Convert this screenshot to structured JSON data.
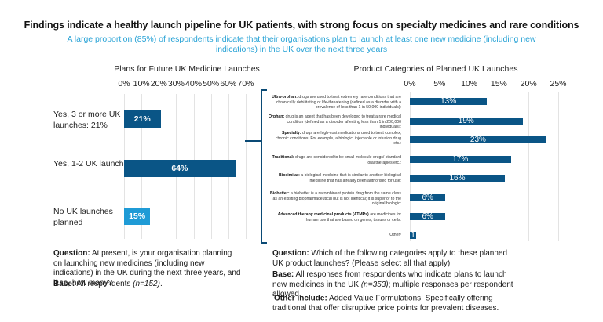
{
  "header": {
    "title": "Findings indicate a healthy launch pipeline for UK patients, with strong focus on specialty medicines and rare conditions",
    "subtitle": "A large proportion (85%) of respondents indicate that their organisations plan to launch at least one new medicine (including new indications) in the UK over the next three years"
  },
  "colors": {
    "primary_bar": "#0a5586",
    "secondary_bar": "#1f9bd6",
    "subtitle": "#29a3d6",
    "brace": "#0a4a75"
  },
  "chart_data": [
    {
      "type": "bar",
      "orientation": "horizontal",
      "title": "Plans for Future UK Medicine Launches",
      "categories": [
        "Yes, 3 or more UK launches: 21%",
        "Yes, 1-2 UK launches:",
        "No UK launches planned"
      ],
      "values": [
        21,
        64,
        15
      ],
      "data_labels": [
        "21%",
        "64%",
        "15%"
      ],
      "xlim": [
        0,
        70
      ],
      "x_ticks": [
        "0%",
        "10%",
        "20%",
        "30%",
        "40%",
        "50%",
        "60%",
        "70%"
      ],
      "grid": true,
      "xlabel": "",
      "ylabel": ""
    },
    {
      "type": "bar",
      "orientation": "horizontal",
      "title": "Product Categories of Planned UK Launches",
      "categories": [
        {
          "term": "Ultra-orphan:",
          "desc": "drugs are used to treat extremely rare conditions that are chronically debilitating or life-threatening (defined as a disorder with a prevalence of less than 1 in 50,000 individuals):"
        },
        {
          "term": "Orphan:",
          "desc": "drug is an agent that has been developed to treat a rare medical condition (defined as a disorder affecting less than 1 in 200,000 individuals):"
        },
        {
          "term": "Specialty:",
          "desc": "drugs are high-cost medications used to treat complex, chronic conditions. For example, a biologic, injectable or infusion drug etc.:"
        },
        {
          "term": "Traditional:",
          "desc": "drugs are considered to be small molecule drugs/ standard oral therapies etc.:"
        },
        {
          "term": "Biosimilar:",
          "desc": "a biological medicine that is similar to another biological medicine that has already been authorised for use:"
        },
        {
          "term": "Biobetter:",
          "desc": "a biobetter is a recombinant protein drug from the same class as an existing biopharmaceutical but is not identical; it is superior to the original biologic:"
        },
        {
          "term": "Advanced therapy medicinal products (ATMPs)",
          "desc": "are medicines for human use that are based on genes, tissues or cells:"
        },
        {
          "term": "",
          "desc": "Other¹"
        }
      ],
      "values": [
        13,
        19,
        23,
        17,
        16,
        6,
        6,
        1
      ],
      "data_labels": [
        "13%",
        "19%",
        "23%",
        "17%",
        "16%",
        "6%",
        "6%",
        "1"
      ],
      "xlim": [
        0,
        25
      ],
      "x_ticks": [
        "0%",
        "5%",
        "10%",
        "15%",
        "20%",
        "25%"
      ],
      "grid": true,
      "xlabel": "",
      "ylabel": ""
    }
  ],
  "left_notes": {
    "question_label": "Question:",
    "question_text": " At present, is your organisation planning on launching new medicines (including new indications) in the UK during the next three years, and if so, how many?",
    "base_label": "Base:",
    "base_text": " All respondents ",
    "base_n": "(n=152)",
    "base_end": "."
  },
  "right_notes": {
    "question_label": "Question:",
    "question_text": " Which of the following categories apply to these planned UK product launches? (Please select all that apply)",
    "base_label": "Base:",
    "base_text": " All responses from respondents who indicate plans to launch new medicines in the UK ",
    "base_n": "(n=353)",
    "base_end": "; multiple responses per respondent allowed.",
    "other_sup": "¹",
    "other_label": "Other include:",
    "other_text": " Added Value Formulations; Specifically offering traditional that offer disruptive price points for prevalent diseases."
  }
}
